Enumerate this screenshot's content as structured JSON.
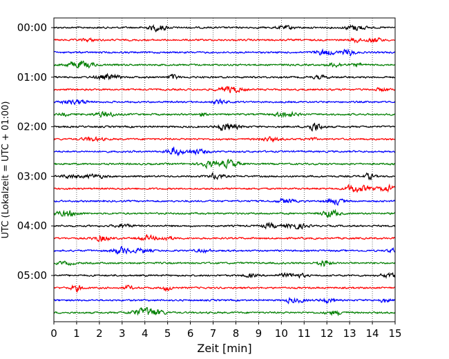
{
  "chart_data": {
    "type": "line",
    "title": "",
    "xlabel": "Zeit  [min]",
    "ylabel": "UTC (Lokalzeit = UTC + 01:00)",
    "xlim": [
      0,
      15
    ],
    "x_ticks": [
      0,
      1,
      2,
      3,
      4,
      5,
      6,
      7,
      8,
      9,
      10,
      11,
      12,
      13,
      14,
      15
    ],
    "grid": "vertical dotted at each minute",
    "y_tick_labels": [
      "00:00",
      "01:00",
      "02:00",
      "03:00",
      "04:00",
      "05:00"
    ],
    "traces_per_hour": 4,
    "minutes_per_trace": 15,
    "trace_count": 24,
    "trace_colors": [
      "#000000",
      "#ff0000",
      "#0000ff",
      "#007f00"
    ],
    "traces": [
      {
        "start": "00:00",
        "color": "#000000"
      },
      {
        "start": "00:15",
        "color": "#ff0000"
      },
      {
        "start": "00:30",
        "color": "#0000ff"
      },
      {
        "start": "00:45",
        "color": "#007f00"
      },
      {
        "start": "01:00",
        "color": "#000000"
      },
      {
        "start": "01:15",
        "color": "#ff0000"
      },
      {
        "start": "01:30",
        "color": "#0000ff"
      },
      {
        "start": "01:45",
        "color": "#007f00"
      },
      {
        "start": "02:00",
        "color": "#000000"
      },
      {
        "start": "02:15",
        "color": "#ff0000"
      },
      {
        "start": "02:30",
        "color": "#0000ff"
      },
      {
        "start": "02:45",
        "color": "#007f00"
      },
      {
        "start": "03:00",
        "color": "#000000"
      },
      {
        "start": "03:15",
        "color": "#ff0000"
      },
      {
        "start": "03:30",
        "color": "#0000ff"
      },
      {
        "start": "03:45",
        "color": "#007f00"
      },
      {
        "start": "04:00",
        "color": "#000000"
      },
      {
        "start": "04:15",
        "color": "#ff0000"
      },
      {
        "start": "04:30",
        "color": "#0000ff"
      },
      {
        "start": "04:45",
        "color": "#007f00"
      },
      {
        "start": "05:00",
        "color": "#000000"
      },
      {
        "start": "05:15",
        "color": "#ff0000"
      },
      {
        "start": "05:30",
        "color": "#0000ff"
      },
      {
        "start": "05:45",
        "color": "#007f00"
      }
    ]
  }
}
